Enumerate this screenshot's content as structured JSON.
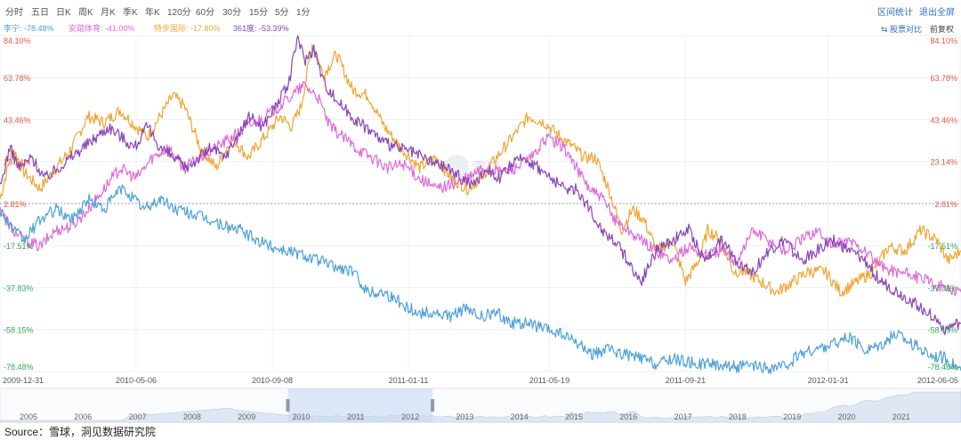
{
  "toolbar": {
    "periods": [
      "分时",
      "五日",
      "日K",
      "周K",
      "月K",
      "季K",
      "年K",
      "120分",
      "60分",
      "30分",
      "15分",
      "5分",
      "1分"
    ],
    "interval_stats": "区间统计",
    "fullscreen": "退出全屏"
  },
  "legend": {
    "items": [
      {
        "label": "李宁: -78.48%",
        "color": "#4ea1d7"
      },
      {
        "label": "安踏体育: -41.00%",
        "color": "#de6ad9"
      },
      {
        "label": "特步国际: -17.80%",
        "color": "#f0a531"
      },
      {
        "label": "361度: -53.39%",
        "color": "#8a44b6"
      }
    ],
    "compare_label": "股票对比",
    "adjust_label": "前复权"
  },
  "chart_data": {
    "type": "line",
    "title": "",
    "watermark": "雪球",
    "y_ticks": [
      {
        "label": "84.10%",
        "value": 84.1,
        "color": "#e05a4a"
      },
      {
        "label": "63.78%",
        "value": 63.78,
        "color": "#e05a4a"
      },
      {
        "label": "43.46%",
        "value": 43.46,
        "color": "#e05a4a"
      },
      {
        "label": "23.14%",
        "value": 23.14,
        "color": "#e05a4a"
      },
      {
        "label": "2.81%",
        "value": 2.81,
        "color": "#e05a4a"
      },
      {
        "label": "-17.51%",
        "value": -17.51,
        "color": "#2eaa55"
      },
      {
        "label": "-37.83%",
        "value": -37.83,
        "color": "#2eaa55"
      },
      {
        "label": "-58.15%",
        "value": -58.15,
        "color": "#2eaa55"
      },
      {
        "label": "-78.48%",
        "value": -78.48,
        "color": "#2eaa55"
      }
    ],
    "baseline_value": 2.81,
    "ylim": [
      -78.48,
      84.1
    ],
    "x_ticks": [
      {
        "label": "2009-12-31",
        "x": 0
      },
      {
        "label": "2010-05-06",
        "x": 85
      },
      {
        "label": "2010-09-08",
        "x": 170
      },
      {
        "label": "2011-01-11",
        "x": 255
      },
      {
        "label": "2011-05-19",
        "x": 343
      },
      {
        "label": "2011-09-21",
        "x": 428
      },
      {
        "label": "2012-01-31",
        "x": 517
      },
      {
        "label": "2012-06-05",
        "x": 600
      }
    ],
    "xlim": [
      0,
      600
    ],
    "series": [
      {
        "name": "特步国际",
        "color": "#f0a531",
        "x": [
          0,
          8,
          15,
          25,
          35,
          45,
          55,
          65,
          75,
          85,
          92,
          100,
          108,
          115,
          125,
          135,
          145,
          155,
          165,
          175,
          182,
          188,
          195,
          202,
          210,
          220,
          230,
          240,
          250,
          262,
          272,
          282,
          292,
          300,
          310,
          320,
          330,
          340,
          350,
          358,
          365,
          372,
          380,
          388,
          395,
          402,
          410,
          420,
          428,
          436,
          442,
          450,
          458,
          465,
          475,
          485,
          495,
          505,
          515,
          525,
          535,
          545,
          555,
          565,
          575,
          585,
          592,
          600
        ],
        "y": [
          5,
          30,
          18,
          10,
          20,
          30,
          45,
          42,
          48,
          40,
          35,
          45,
          55,
          50,
          30,
          20,
          35,
          25,
          35,
          45,
          40,
          50,
          80,
          65,
          75,
          58,
          55,
          40,
          30,
          20,
          25,
          15,
          10,
          15,
          25,
          35,
          45,
          42,
          35,
          30,
          25,
          25,
          10,
          -10,
          0,
          -5,
          -20,
          -15,
          -35,
          -25,
          -10,
          -15,
          -30,
          -30,
          -35,
          -40,
          -35,
          -30,
          -30,
          -40,
          -35,
          -30,
          -18,
          -20,
          -10,
          -15,
          -25,
          -20
        ]
      },
      {
        "name": "安踏体育",
        "color": "#de6ad9",
        "x": [
          0,
          8,
          15,
          25,
          35,
          45,
          55,
          65,
          75,
          85,
          95,
          105,
          115,
          125,
          135,
          145,
          155,
          165,
          175,
          182,
          190,
          198,
          206,
          214,
          222,
          232,
          242,
          252,
          262,
          272,
          282,
          292,
          302,
          312,
          322,
          332,
          342,
          352,
          360,
          368,
          376,
          384,
          392,
          400,
          410,
          420,
          430,
          440,
          450,
          460,
          470,
          480,
          490,
          500,
          510,
          520,
          530,
          540,
          550,
          560,
          570,
          580,
          590,
          600
        ],
        "y": [
          0,
          -10,
          -15,
          -18,
          -10,
          -8,
          0,
          10,
          20,
          15,
          25,
          30,
          20,
          25,
          30,
          35,
          40,
          45,
          50,
          55,
          60,
          55,
          40,
          35,
          30,
          25,
          20,
          22,
          15,
          10,
          12,
          15,
          20,
          18,
          20,
          25,
          35,
          30,
          20,
          10,
          5,
          -5,
          -10,
          -15,
          -20,
          -25,
          -18,
          -22,
          -20,
          -25,
          -10,
          -15,
          -20,
          -15,
          -10,
          -18,
          -15,
          -20,
          -28,
          -30,
          -32,
          -35,
          -38,
          -40
        ]
      },
      {
        "name": "361度",
        "color": "#8a44b6",
        "x": [
          0,
          6,
          12,
          20,
          28,
          36,
          44,
          52,
          60,
          68,
          76,
          84,
          92,
          100,
          108,
          116,
          124,
          132,
          140,
          148,
          156,
          164,
          172,
          180,
          186,
          190,
          196,
          202,
          208,
          216,
          224,
          232,
          240,
          248,
          256,
          264,
          272,
          280,
          288,
          296,
          304,
          312,
          320,
          328,
          336,
          344,
          352,
          360,
          368,
          376,
          384,
          392,
          400,
          410,
          420,
          430,
          440,
          450,
          460,
          470,
          480,
          490,
          500,
          510,
          520,
          530,
          540,
          550,
          560,
          570,
          580,
          590,
          600
        ],
        "y": [
          10,
          30,
          20,
          25,
          15,
          20,
          25,
          30,
          35,
          40,
          35,
          30,
          40,
          30,
          25,
          20,
          25,
          30,
          25,
          35,
          45,
          40,
          50,
          60,
          84,
          72,
          78,
          62,
          55,
          48,
          42,
          38,
          32,
          30,
          28,
          25,
          22,
          20,
          15,
          12,
          20,
          15,
          22,
          25,
          20,
          15,
          10,
          10,
          0,
          -10,
          -15,
          -25,
          -35,
          -20,
          -15,
          -10,
          -25,
          -15,
          -25,
          -30,
          -20,
          -15,
          -25,
          -20,
          -15,
          -20,
          -25,
          -35,
          -40,
          -45,
          -50,
          -58,
          -55
        ]
      },
      {
        "name": "李宁",
        "color": "#4ea1d7",
        "x": [
          0,
          8,
          15,
          25,
          35,
          45,
          55,
          65,
          75,
          80,
          90,
          100,
          110,
          120,
          130,
          140,
          150,
          160,
          170,
          180,
          190,
          200,
          210,
          220,
          230,
          240,
          250,
          260,
          270,
          280,
          290,
          300,
          310,
          320,
          330,
          340,
          350,
          360,
          370,
          380,
          390,
          400,
          410,
          420,
          430,
          440,
          450,
          460,
          470,
          480,
          490,
          500,
          510,
          520,
          530,
          540,
          550,
          560,
          570,
          580,
          590,
          600
        ],
        "y": [
          0,
          -10,
          -15,
          -5,
          0,
          -5,
          5,
          0,
          10,
          8,
          0,
          5,
          0,
          -2,
          -5,
          -8,
          -10,
          -15,
          -18,
          -20,
          -22,
          -25,
          -28,
          -30,
          -40,
          -40,
          -45,
          -50,
          -50,
          -52,
          -48,
          -52,
          -50,
          -55,
          -55,
          -58,
          -60,
          -65,
          -70,
          -68,
          -70,
          -72,
          -75,
          -72,
          -74,
          -75,
          -75,
          -76,
          -76,
          -77,
          -76,
          -70,
          -68,
          -65,
          -62,
          -68,
          -65,
          -60,
          -65,
          -70,
          -72,
          -78
        ]
      }
    ],
    "navigator": {
      "years": [
        "2005",
        "2006",
        "2007",
        "2008",
        "2009",
        "2010",
        "2011",
        "2012",
        "2013",
        "2014",
        "2015",
        "2016",
        "2017",
        "2018",
        "2019",
        "2020",
        "2021"
      ],
      "selected_range": [
        "2010",
        "2012"
      ]
    }
  },
  "source": "Source：雪球，洞见数据研究院"
}
